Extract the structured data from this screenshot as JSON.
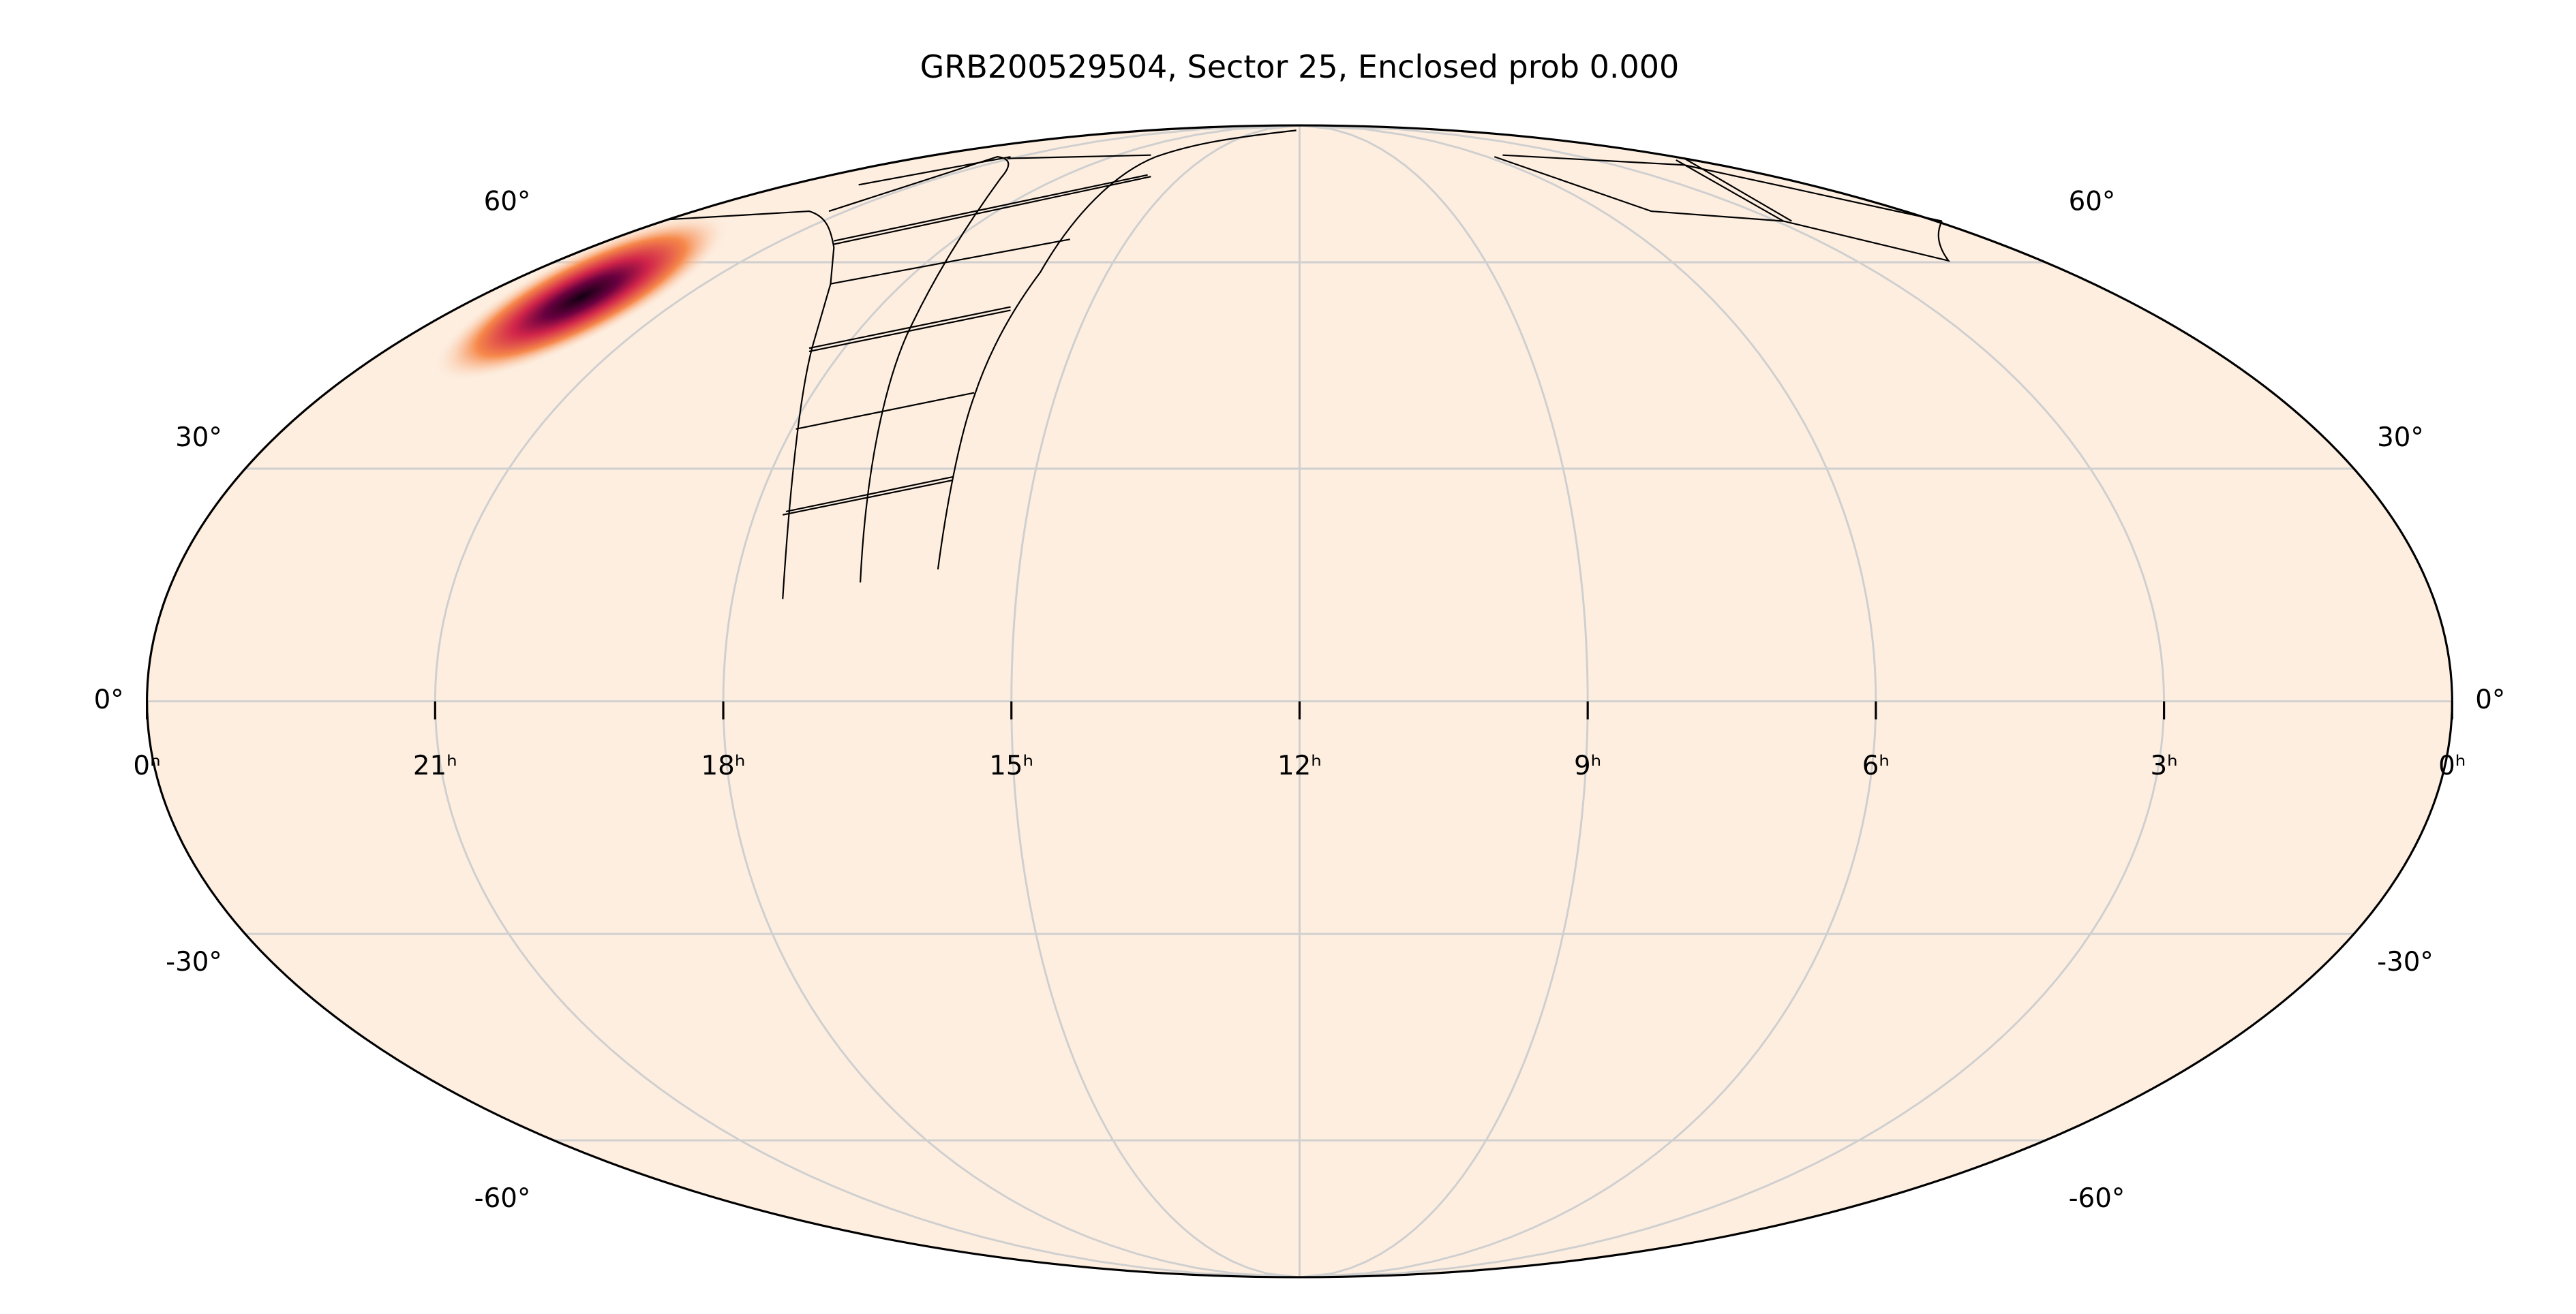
{
  "chart_data": {
    "type": "skymap",
    "title": "GRB200529504, Sector 25, Enclosed prob 0.000",
    "xlim": [
      24,
      0
    ],
    "ylim": [
      -90,
      90
    ],
    "xticks": [
      {
        "value": 24,
        "label": "0ʰ"
      },
      {
        "value": 21,
        "label": "21ʰ"
      },
      {
        "value": 18,
        "label": "18ʰ"
      },
      {
        "value": 15,
        "label": "15ʰ"
      },
      {
        "value": 12,
        "label": "12ʰ"
      },
      {
        "value": 9,
        "label": "9ʰ"
      },
      {
        "value": 6,
        "label": "6ʰ"
      },
      {
        "value": 3,
        "label": "3ʰ"
      },
      {
        "value": 0,
        "label": "0ʰ"
      }
    ],
    "yticks": [
      {
        "value": 60,
        "label": "60°"
      },
      {
        "value": 30,
        "label": "30°"
      },
      {
        "value": 0,
        "label": "0°"
      },
      {
        "value": -30,
        "label": "-30°"
      },
      {
        "value": -60,
        "label": "-60°"
      }
    ],
    "grid": true,
    "grid_color": "#cfcfcf",
    "background_color": "#fdeee0"
  }
}
